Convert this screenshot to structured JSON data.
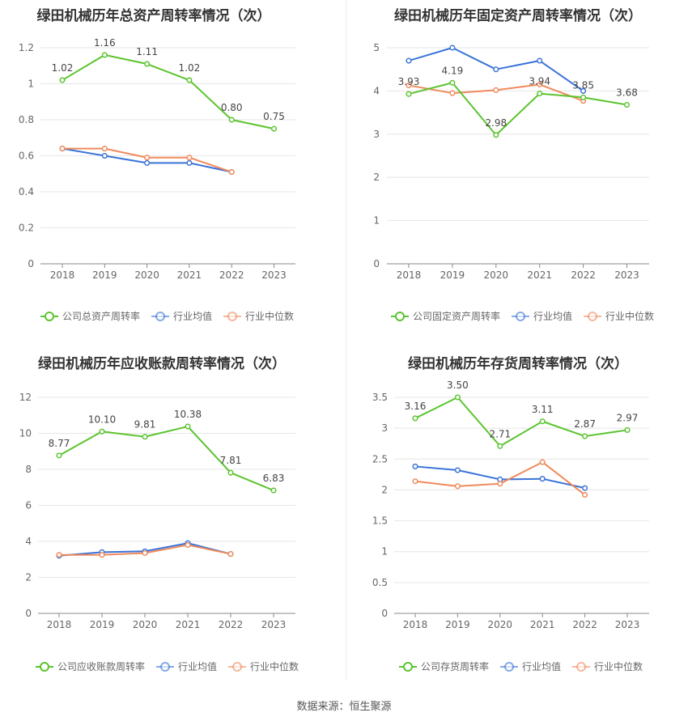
{
  "colors": {
    "company": "#5cc42f",
    "avg": "#3a73d8",
    "median": "#f08a5d",
    "grid": "#e6e6e6",
    "axis": "#888888",
    "text": "#666666",
    "title": "#333333"
  },
  "footer": {
    "source_label": "数据来源：",
    "source_name": "恒生聚源"
  },
  "chart_data": [
    {
      "type": "line",
      "title": "绿田机械历年总资产周转率情况（次）",
      "x": [
        "2018",
        "2019",
        "2020",
        "2021",
        "2022",
        "2023"
      ],
      "ylim": [
        0,
        1.2
      ],
      "yticks": [
        "0",
        "0.2",
        "0.4",
        "0.6",
        "0.8",
        "1",
        "1.2"
      ],
      "grid": true,
      "legend_position": "bottom",
      "series": [
        {
          "name": "公司总资产周转率",
          "role": "company",
          "values": [
            1.02,
            1.16,
            1.11,
            1.02,
            0.8,
            0.75
          ],
          "labels": [
            "1.02",
            "1.16",
            "1.11",
            "1.02",
            "0.80",
            "0.75"
          ]
        },
        {
          "name": "行业均值",
          "role": "avg",
          "values": [
            0.64,
            0.6,
            0.56,
            0.56,
            0.51,
            null
          ]
        },
        {
          "name": "行业中位数",
          "role": "median",
          "values": [
            0.64,
            0.64,
            0.59,
            0.59,
            0.51,
            null
          ]
        }
      ]
    },
    {
      "type": "line",
      "title": "绿田机械历年固定资产周转率情况（次）",
      "x": [
        "2018",
        "2019",
        "2020",
        "2021",
        "2022",
        "2023"
      ],
      "ylim": [
        0,
        5
      ],
      "yticks": [
        "0",
        "1",
        "2",
        "3",
        "4",
        "5"
      ],
      "grid": true,
      "legend_position": "bottom",
      "series": [
        {
          "name": "公司固定资产周转率",
          "role": "company",
          "values": [
            3.93,
            4.19,
            2.98,
            3.94,
            3.85,
            3.68
          ],
          "labels": [
            "3.93",
            "4.19",
            "2.98",
            "3.94",
            "3.85",
            "3.68"
          ]
        },
        {
          "name": "行业均值",
          "role": "avg",
          "values": [
            4.7,
            5.0,
            4.5,
            4.7,
            4.0,
            null
          ]
        },
        {
          "name": "行业中位数",
          "role": "median",
          "values": [
            4.13,
            3.95,
            4.02,
            4.15,
            3.77,
            null
          ]
        }
      ]
    },
    {
      "type": "line",
      "title": "绿田机械历年应收账款周转率情况（次）",
      "x": [
        "2018",
        "2019",
        "2020",
        "2021",
        "2022",
        "2023"
      ],
      "ylim": [
        0,
        12
      ],
      "yticks": [
        "0",
        "2",
        "4",
        "6",
        "8",
        "10",
        "12"
      ],
      "grid": true,
      "legend_position": "bottom",
      "series": [
        {
          "name": "公司应收账款周转率",
          "role": "company",
          "values": [
            8.77,
            10.1,
            9.81,
            10.38,
            7.81,
            6.83
          ],
          "labels": [
            "8.77",
            "10.10",
            "9.81",
            "10.38",
            "7.81",
            "6.83"
          ]
        },
        {
          "name": "行业均值",
          "role": "avg",
          "values": [
            3.2,
            3.4,
            3.45,
            3.9,
            3.3,
            null
          ]
        },
        {
          "name": "行业中位数",
          "role": "median",
          "values": [
            3.25,
            3.25,
            3.35,
            3.8,
            3.3,
            null
          ]
        }
      ]
    },
    {
      "type": "line",
      "title": "绿田机械历年存货周转率情况（次）",
      "x": [
        "2018",
        "2019",
        "2020",
        "2021",
        "2022",
        "2023"
      ],
      "ylim": [
        0,
        3.5
      ],
      "yticks": [
        "0",
        "0.5",
        "1",
        "1.5",
        "2",
        "2.5",
        "3",
        "3.5"
      ],
      "grid": true,
      "legend_position": "bottom",
      "series": [
        {
          "name": "公司存货周转率",
          "role": "company",
          "values": [
            3.16,
            3.5,
            2.71,
            3.11,
            2.87,
            2.97
          ],
          "labels": [
            "3.16",
            "3.50",
            "2.71",
            "3.11",
            "2.87",
            "2.97"
          ]
        },
        {
          "name": "行业均值",
          "role": "avg",
          "values": [
            2.38,
            2.32,
            2.17,
            2.18,
            2.03,
            null
          ]
        },
        {
          "name": "行业中位数",
          "role": "median",
          "values": [
            2.14,
            2.06,
            2.1,
            2.45,
            1.92,
            null
          ]
        }
      ]
    }
  ]
}
